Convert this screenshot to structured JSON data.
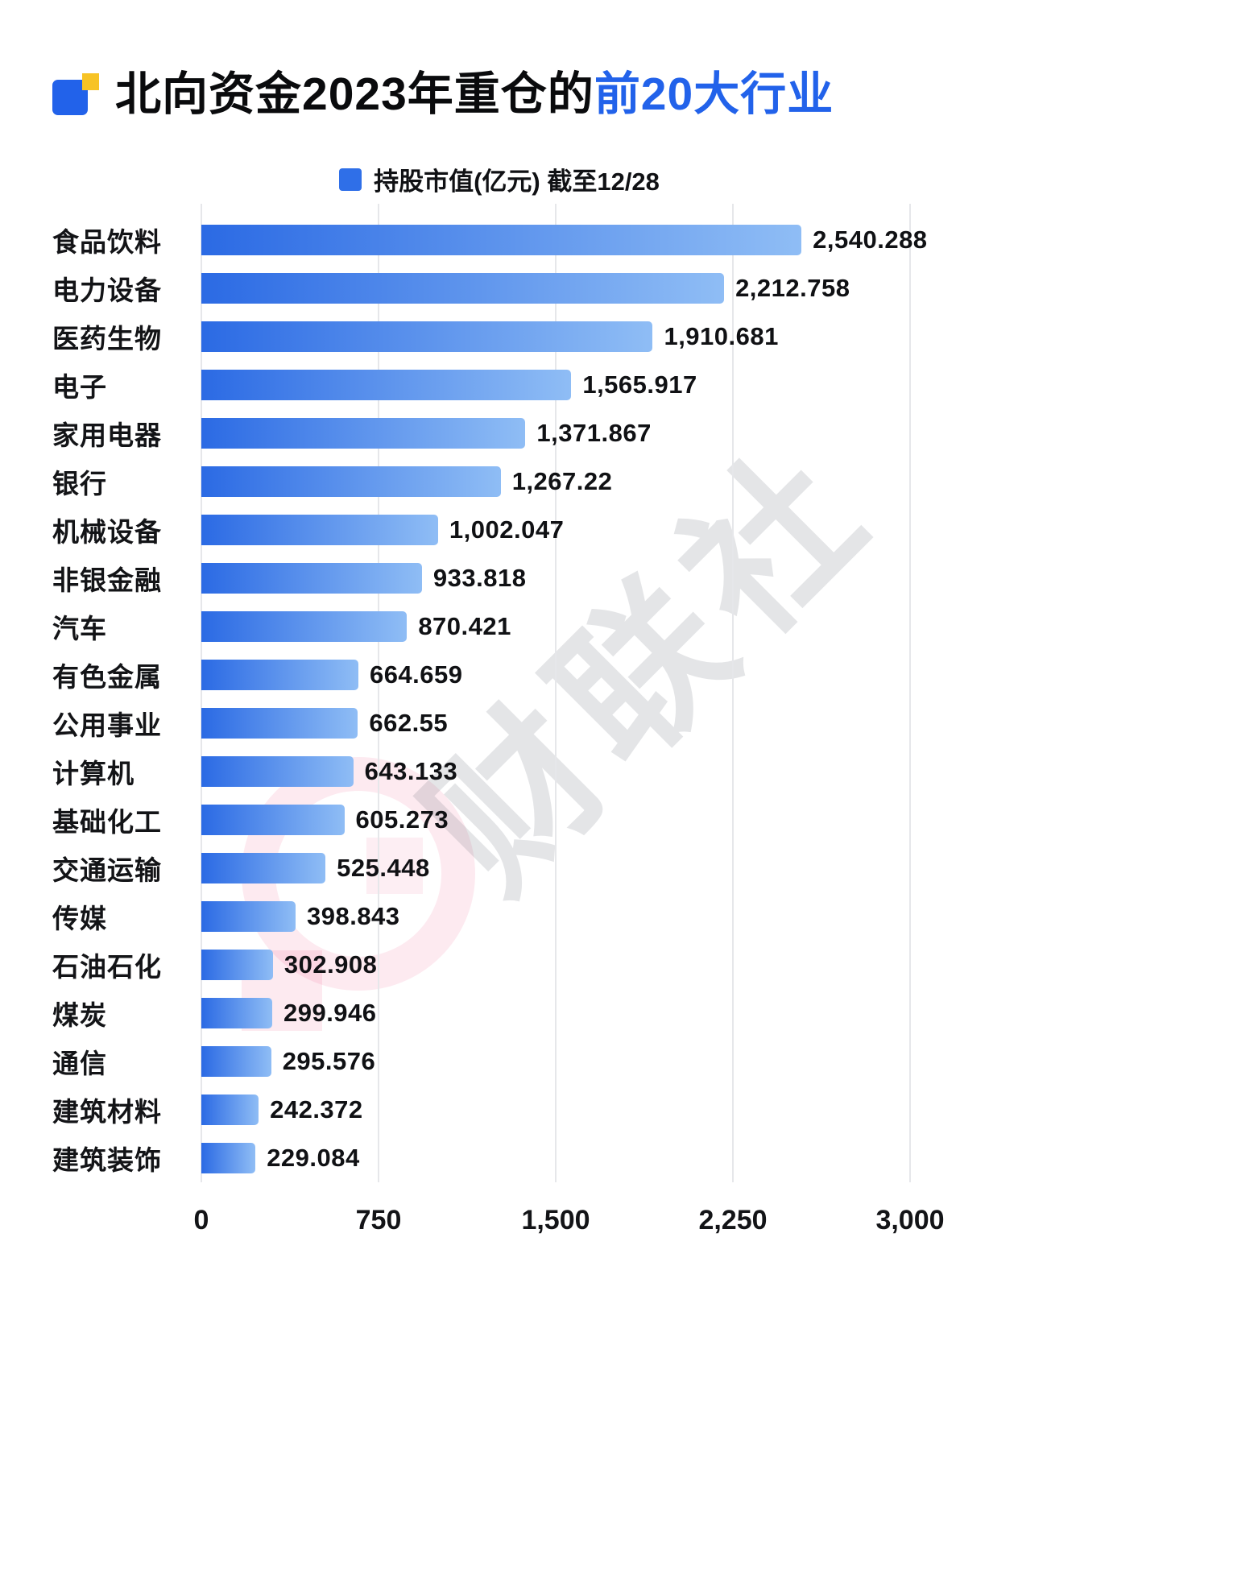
{
  "header": {
    "title_prefix": "北向资金2023年重仓的",
    "title_highlight": "前20大行业"
  },
  "legend": {
    "label": "持股市值(亿元) 截至12/28",
    "swatch_color": "#2f6fe8"
  },
  "watermark": {
    "text": "财联社"
  },
  "chart_data": {
    "type": "bar",
    "orientation": "horizontal",
    "title": "北向资金2023年重仓的前20大行业",
    "legend_label": "持股市值(亿元) 截至12/28",
    "xlabel": "",
    "ylabel": "",
    "xlim": [
      0,
      3000
    ],
    "xticks": [
      0,
      750,
      1500,
      2250,
      3000
    ],
    "xtick_labels": [
      "0",
      "750",
      "1,500",
      "2,250",
      "3,000"
    ],
    "grid": true,
    "bar_color_start": "#2b6ae4",
    "bar_color_end": "#8fbdf5",
    "categories": [
      "食品饮料",
      "电力设备",
      "医药生物",
      "电子",
      "家用电器",
      "银行",
      "机械设备",
      "非银金融",
      "汽车",
      "有色金属",
      "公用事业",
      "计算机",
      "基础化工",
      "交通运输",
      "传媒",
      "石油石化",
      "煤炭",
      "通信",
      "建筑材料",
      "建筑装饰"
    ],
    "values": [
      2540.288,
      2212.758,
      1910.681,
      1565.917,
      1371.867,
      1267.22,
      1002.047,
      933.818,
      870.421,
      664.659,
      662.55,
      643.133,
      605.273,
      525.448,
      398.843,
      302.908,
      299.946,
      295.576,
      242.372,
      229.084
    ],
    "value_labels": [
      "2,540.288",
      "2,212.758",
      "1,910.681",
      "1,565.917",
      "1,371.867",
      "1,267.22",
      "1,002.047",
      "933.818",
      "870.421",
      "664.659",
      "662.55",
      "643.133",
      "605.273",
      "525.448",
      "398.843",
      "302.908",
      "299.946",
      "295.576",
      "242.372",
      "229.084"
    ]
  }
}
